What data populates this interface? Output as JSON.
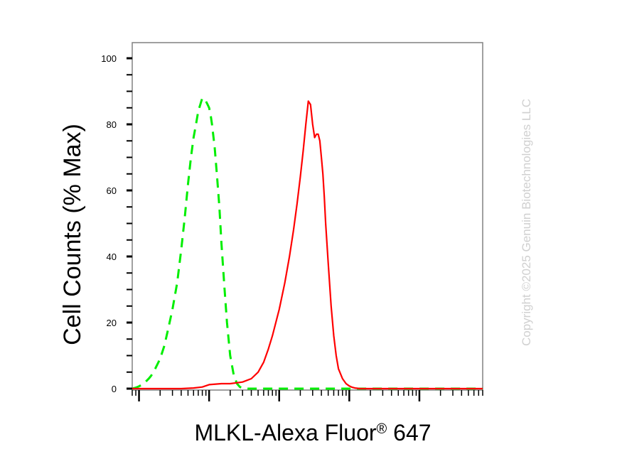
{
  "chart_data": {
    "type": "area",
    "title": "",
    "xlabel": "MLKL-Alexa Fluor",
    "xlabel_superscript": "®",
    "xlabel_suffix": " 647",
    "ylabel": "Cell Counts (% Max)",
    "x_scale": "log",
    "xlim": [
      8,
      800000
    ],
    "ylim": [
      0,
      105
    ],
    "y_ticks": [
      0,
      20,
      40,
      60,
      80,
      100
    ],
    "grid": false,
    "legend": "none",
    "series": [
      {
        "color": "#00ee00",
        "line_style": "dashed",
        "x": [
          8,
          9,
          10,
          11,
          12,
          13,
          14,
          15,
          17,
          20,
          23,
          26,
          30,
          35,
          40,
          45,
          50,
          55,
          60,
          65,
          70,
          75,
          80,
          85,
          90,
          95,
          100,
          105,
          110,
          120,
          130,
          140,
          150,
          165,
          180,
          200,
          225,
          250,
          275,
          300,
          330,
          360,
          400,
          450,
          500,
          600,
          800000
        ],
        "y": [
          0,
          0.3,
          0.7,
          1.2,
          1.8,
          2.5,
          3.2,
          4,
          6,
          9,
          13,
          18,
          24,
          32,
          42,
          52,
          62,
          70,
          76,
          80,
          84,
          86,
          88,
          87.5,
          87,
          86,
          85,
          83,
          80,
          73,
          64,
          55,
          44,
          31,
          20,
          10,
          4,
          1.5,
          0.5,
          0.2,
          0.1,
          0,
          0,
          0,
          0,
          0,
          0
        ]
      },
      {
        "color": "#ff0000",
        "line_style": "solid",
        "x": [
          8,
          20,
          40,
          60,
          80,
          100,
          150,
          200,
          300,
          400,
          500,
          600,
          700,
          800,
          1000,
          1200,
          1400,
          1600,
          1800,
          2000,
          2200,
          2400,
          2600,
          2800,
          3000,
          3200,
          3400,
          3600,
          3800,
          4000,
          4200,
          4400,
          4600,
          5000,
          5500,
          6000,
          6500,
          7000,
          8000,
          9000,
          10000,
          11000,
          12000,
          13000,
          14000,
          15000,
          17000,
          20000,
          25000,
          40000,
          100000,
          800000
        ],
        "y": [
          0,
          0,
          0,
          0.2,
          0.5,
          1.2,
          1.5,
          1.5,
          2,
          3,
          5,
          8,
          12,
          16,
          24,
          32,
          40,
          48,
          56,
          64,
          72,
          80,
          87,
          86,
          80,
          76,
          77,
          77,
          75,
          70,
          65,
          58,
          50,
          38,
          25,
          16,
          10,
          6,
          3,
          1.5,
          0.8,
          0.4,
          0.2,
          0.1,
          0,
          0,
          0,
          0,
          0,
          0,
          0,
          0
        ]
      }
    ]
  },
  "watermark": "Copyright ©2025 Genuin Biotechnologies LLC"
}
